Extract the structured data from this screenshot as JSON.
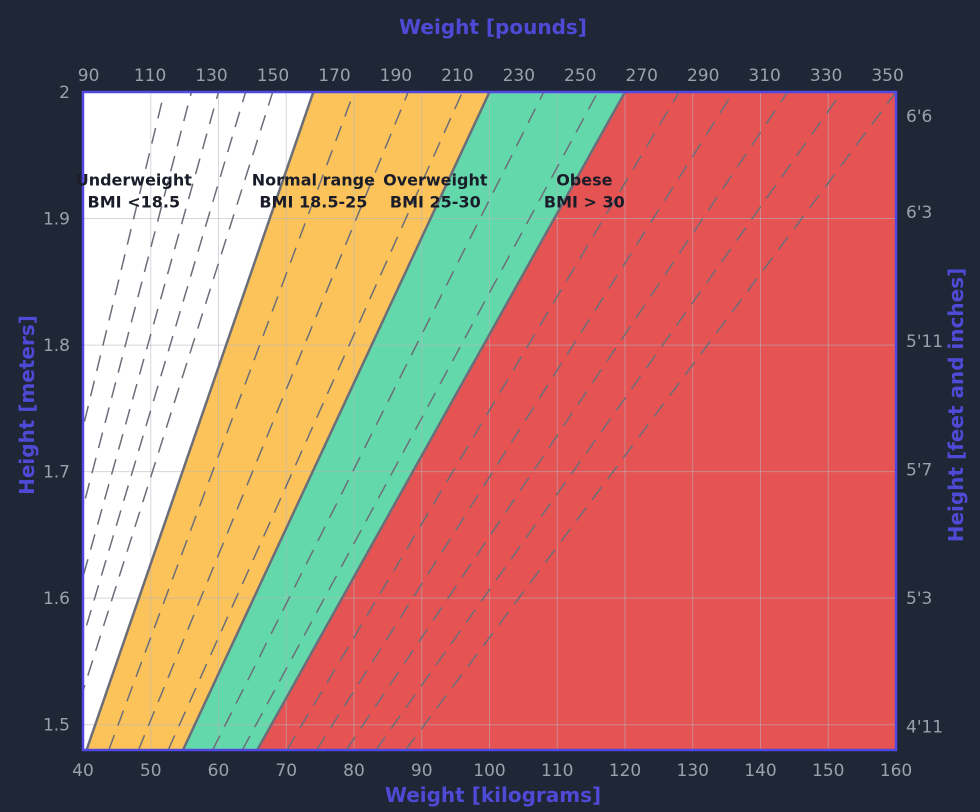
{
  "chart_data": {
    "type": "area",
    "title": "",
    "x_bottom": {
      "label": "Weight [kilograms]",
      "range": [
        40,
        160
      ],
      "ticks": [
        40,
        50,
        60,
        70,
        80,
        90,
        100,
        110,
        120,
        130,
        140,
        150,
        160
      ]
    },
    "x_top": {
      "label": "Weight [pounds]",
      "unit_per_kg": 2.20462,
      "ticks": [
        90,
        110,
        130,
        150,
        170,
        190,
        210,
        230,
        250,
        270,
        290,
        310,
        330,
        350
      ]
    },
    "y_left": {
      "label": "Height [meters]",
      "range": [
        1.48,
        2.0
      ],
      "ticks": [
        1.5,
        1.6,
        1.7,
        1.8,
        1.9,
        2
      ]
    },
    "y_right": {
      "label": "Height [feet and inches]",
      "ticks": [
        {
          "label": "4'11",
          "inches": 59
        },
        {
          "label": "5'3",
          "inches": 63
        },
        {
          "label": "5'7",
          "inches": 67
        },
        {
          "label": "5'11",
          "inches": 71
        },
        {
          "label": "6'3",
          "inches": 75
        },
        {
          "label": "6'6",
          "inches": 78
        }
      ]
    },
    "grid": true,
    "bmi_boundaries": [
      18.5,
      25,
      30
    ],
    "dashed_bmi_lines": [
      13,
      14,
      15,
      16,
      17,
      20,
      22,
      24,
      27,
      29,
      32,
      34,
      36,
      38,
      40
    ],
    "zones": [
      {
        "name": "Underweight",
        "range_label": "BMI <18.5",
        "bmi_min": 0,
        "bmi_max": 18.5,
        "color": "#ffffff",
        "label_kg": 47.5,
        "label_m": 1.9
      },
      {
        "name": "Normal range",
        "range_label": "BMI 18.5-25",
        "bmi_min": 18.5,
        "bmi_max": 25,
        "color": "#fcc35a",
        "label_kg": 74,
        "label_m": 1.9
      },
      {
        "name": "Overweight",
        "range_label": "BMI 25-30",
        "bmi_min": 25,
        "bmi_max": 30,
        "color": "#63d9ab",
        "label_kg": 92,
        "label_m": 1.9
      },
      {
        "name": "Obese",
        "range_label": "BMI > 30",
        "bmi_min": 30,
        "bmi_max": 1000,
        "color": "#e65353",
        "label_kg": 114,
        "label_m": 1.9
      }
    ],
    "colors": {
      "background": "#1f2635",
      "frame": "#5048e0",
      "axis_title": "#4f4ad6",
      "tick": "#9aa0ad",
      "grid": "#b5b7bd",
      "boundary_line": "#6b6e78",
      "dashed_line": "#6b6e78",
      "zone_text": "#1a1d29"
    }
  }
}
